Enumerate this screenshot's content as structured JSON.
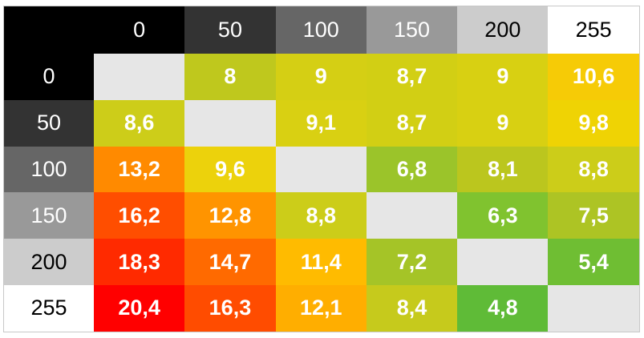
{
  "chart_data": {
    "type": "heatmap",
    "x_labels": [
      "0",
      "50",
      "100",
      "150",
      "200",
      "255"
    ],
    "y_labels": [
      "0",
      "50",
      "100",
      "150",
      "200",
      "255"
    ],
    "values": [
      [
        null,
        "8",
        "9",
        "8,7",
        "9",
        "10,6"
      ],
      [
        "8,6",
        null,
        "9,1",
        "8,7",
        "9",
        "9,8"
      ],
      [
        "13,2",
        "9,6",
        null,
        "6,8",
        "8,1",
        "8,8"
      ],
      [
        "16,2",
        "12,8",
        "8,8",
        null,
        "6,3",
        "7,5"
      ],
      [
        "18,3",
        "14,7",
        "11,4",
        "7,2",
        null,
        "5,4"
      ],
      [
        "20,4",
        "16,3",
        "12,1",
        "8,4",
        "4,8",
        null
      ]
    ],
    "header_colors": [
      "#000000",
      "#333333",
      "#666666",
      "#999999",
      "#cccccc",
      "#ffffff"
    ],
    "header_text_colors": [
      "#ffffff",
      "#ffffff",
      "#ffffff",
      "#ffffff",
      "#000000",
      "#000000"
    ],
    "corner_color": "#000000",
    "diagonal_color": "#e6e6e6",
    "cell_colors": [
      [
        "#e6e6e6",
        "#bfc81d",
        "#d5cf14",
        "#d2cf14",
        "#d8d012",
        "#f6cb06"
      ],
      [
        "#cdcd19",
        "#e6e6e6",
        "#d9d012",
        "#d2cf14",
        "#d8d012",
        "#efd304"
      ],
      [
        "#ff8a00",
        "#ecd20c",
        "#e6e6e6",
        "#9bc42a",
        "#bbc61e",
        "#cccd19"
      ],
      [
        "#ff4e00",
        "#ff9400",
        "#cccd19",
        "#e6e6e6",
        "#80c32f",
        "#adc424"
      ],
      [
        "#ff2a00",
        "#ff6a00",
        "#ffbb00",
        "#a5c427",
        "#e6e6e6",
        "#6fbe33"
      ],
      [
        "#ff0000",
        "#ff4c00",
        "#ffae00",
        "#c6ca1c",
        "#5fbb37",
        "#e6e6e6"
      ]
    ]
  }
}
